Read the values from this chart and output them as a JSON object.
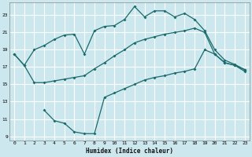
{
  "xlabel": "Humidex (Indice chaleur)",
  "bg_color": "#cce8ee",
  "grid_color": "#ffffff",
  "line_color": "#1a6b6b",
  "xlim": [
    -0.5,
    23.5
  ],
  "ylim": [
    8.5,
    24.5
  ],
  "xticks": [
    0,
    1,
    2,
    3,
    4,
    5,
    6,
    7,
    8,
    9,
    10,
    11,
    12,
    13,
    14,
    15,
    16,
    17,
    18,
    19,
    20,
    21,
    22,
    23
  ],
  "yticks": [
    9,
    11,
    13,
    15,
    17,
    19,
    21,
    23
  ],
  "line1_x": [
    0,
    1,
    2,
    3,
    4,
    5,
    6,
    7,
    8,
    9,
    10,
    11,
    12,
    13,
    14,
    15,
    16,
    17,
    18,
    19,
    20,
    21,
    22,
    23
  ],
  "line1_y": [
    18.5,
    17.2,
    19.0,
    19.5,
    20.2,
    20.7,
    20.8,
    18.5,
    21.2,
    21.7,
    21.8,
    22.5,
    24.0,
    22.8,
    23.5,
    23.5,
    22.8,
    23.2,
    22.5,
    21.2,
    19.0,
    17.8,
    17.3,
    16.7
  ],
  "line2_x": [
    0,
    1,
    2,
    3,
    4,
    5,
    6,
    7,
    8,
    9,
    10,
    11,
    12,
    13,
    14,
    15,
    16,
    17,
    18,
    19,
    20,
    21,
    22,
    23
  ],
  "line2_y": [
    18.5,
    17.2,
    15.2,
    15.2,
    15.4,
    15.6,
    15.8,
    16.0,
    16.8,
    17.5,
    18.3,
    19.0,
    19.8,
    20.2,
    20.5,
    20.8,
    21.0,
    21.2,
    21.5,
    21.0,
    18.5,
    17.5,
    17.2,
    16.5
  ],
  "line3_x": [
    3,
    4,
    5,
    6,
    7,
    8,
    9,
    10,
    11,
    12,
    13,
    14,
    15,
    16,
    17,
    18,
    19,
    20,
    21,
    22,
    23
  ],
  "line3_y": [
    12.0,
    10.8,
    10.5,
    9.5,
    9.3,
    9.3,
    13.5,
    14.0,
    14.5,
    15.0,
    15.5,
    15.8,
    16.0,
    16.3,
    16.5,
    16.8,
    19.0,
    18.5,
    17.5,
    17.2,
    16.7
  ]
}
